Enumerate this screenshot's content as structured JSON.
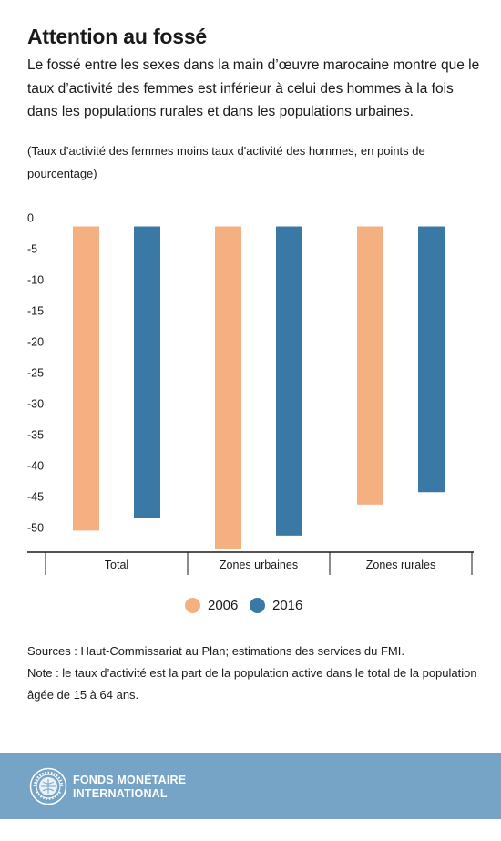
{
  "header": {
    "title": "Attention au fossé",
    "subtitle": "Le fossé entre les sexes dans la main d’œuvre marocaine montre que le taux d’activité des femmes est inférieur à celui des hommes à la fois dans les populations rurales et dans les populations urbaines.",
    "units": "(Taux d’activité des femmes moins taux d'activité des hommes, en points de pourcentage)"
  },
  "chart_data": {
    "type": "bar",
    "categories": [
      "Total",
      "Zones urbaines",
      "Zones rurales"
    ],
    "series": [
      {
        "name": "2006",
        "color": "#f5b082",
        "values": [
          -50.5,
          -53.5,
          -46.3
        ]
      },
      {
        "name": "2016",
        "color": "#3a78a6",
        "values": [
          -48.5,
          -51.3,
          -44.3
        ]
      }
    ],
    "bar_top": -1.4,
    "ylim": [
      -54,
      0
    ],
    "yticks": [
      0,
      -5,
      -10,
      -15,
      -20,
      -25,
      -30,
      -35,
      -40,
      -45,
      -50
    ],
    "grid": false,
    "legend_position": "bottom-center"
  },
  "legend": [
    {
      "label": "2006",
      "color": "#f5b082"
    },
    {
      "label": "2016",
      "color": "#3a78a6"
    }
  ],
  "notes": {
    "sources": "Sources : Haut-Commissariat au Plan; estimations des services du FMI.",
    "note": "Note : le taux d’activité est la part de la population active dans le total de la population âgée de 15 à 64 ans."
  },
  "footer": {
    "org_line1": "FONDS MONÉTAIRE",
    "org_line2": "INTERNATIONAL",
    "logo_icon": "imf-seal-icon"
  }
}
